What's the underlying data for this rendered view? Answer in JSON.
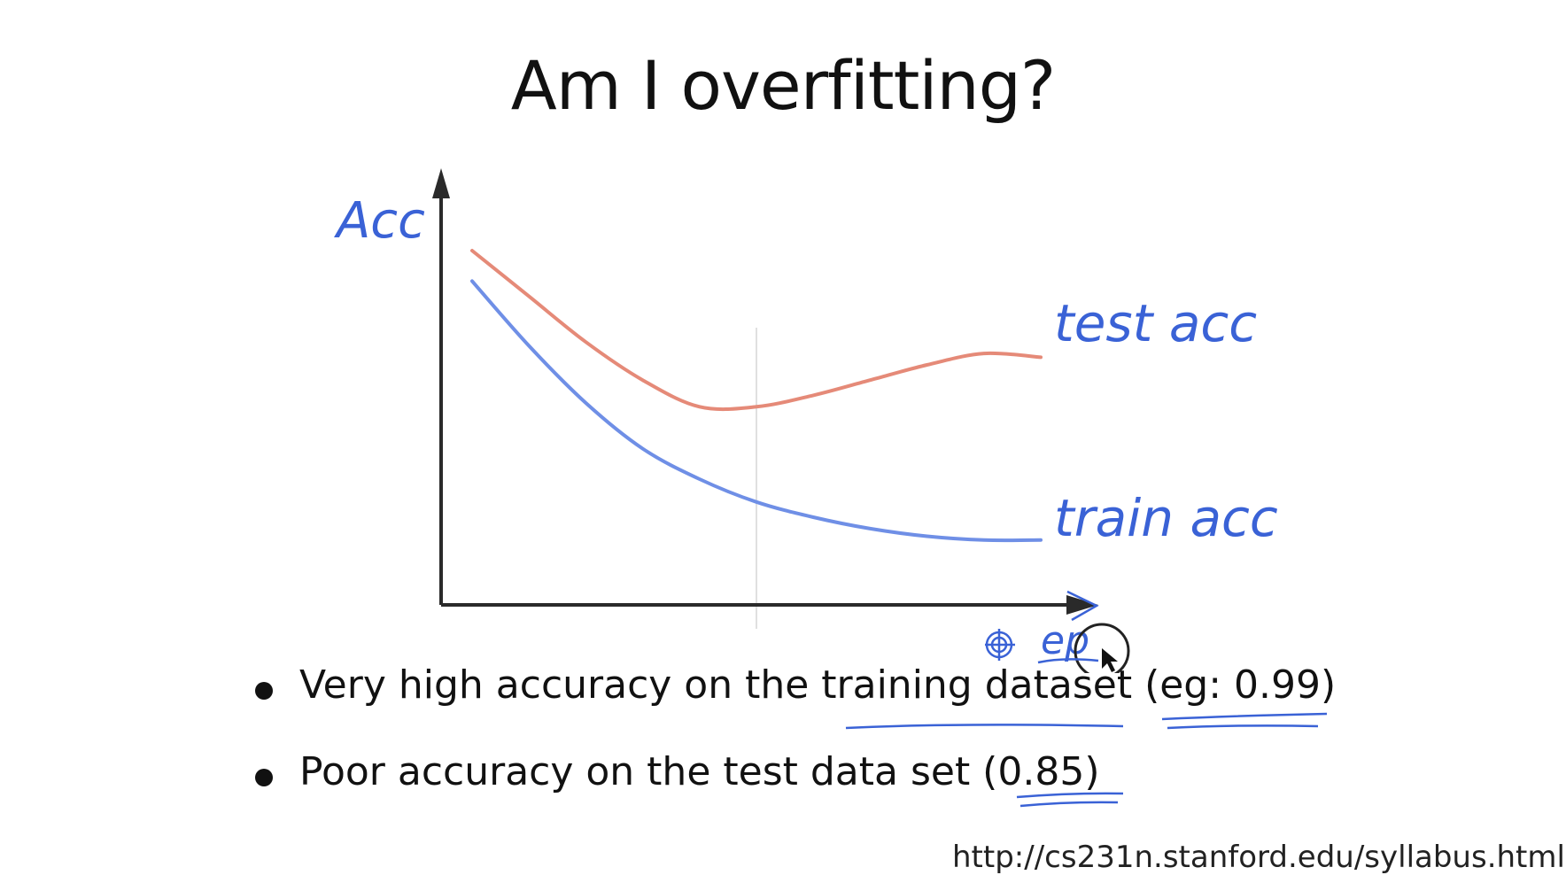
{
  "slide": {
    "title": "Am I overfitting?",
    "bullets": [
      {
        "prefix": "Very high accuracy on the ",
        "underlined": "training dataset",
        "mid": " (",
        "underlined2": "eg: 0.99",
        "suffix": ")"
      },
      {
        "prefix": "Poor accuracy on the test data set (",
        "underlined": "0.85",
        "suffix": ")"
      }
    ],
    "footer_url": "http://cs231n.stanford.edu/syllabus.html"
  },
  "annotations": {
    "y_axis": "Acc",
    "x_axis": "ep",
    "test_curve": "test acc",
    "train_curve": "train acc"
  },
  "colors": {
    "axis": "#2a2a2a",
    "test": "#e58a78",
    "train": "#6f8fe6",
    "ink": "#3a62d6",
    "marker_line": "#e0e0e0"
  },
  "chart_data": {
    "type": "line",
    "xlabel": "ep",
    "ylabel": "Acc",
    "x": [
      0,
      1,
      2,
      3,
      4,
      5,
      6,
      7,
      8,
      9,
      10
    ],
    "series": [
      {
        "name": "test acc",
        "values": [
          0.9,
          0.78,
          0.66,
          0.56,
          0.49,
          0.49,
          0.52,
          0.56,
          0.6,
          0.63,
          0.62
        ]
      },
      {
        "name": "train acc",
        "values": [
          0.82,
          0.65,
          0.5,
          0.38,
          0.3,
          0.24,
          0.2,
          0.17,
          0.15,
          0.14,
          0.14
        ]
      }
    ],
    "marker_x": 5,
    "ylim": [
      0,
      1
    ],
    "xlim": [
      0,
      11.5
    ],
    "grid": false
  }
}
